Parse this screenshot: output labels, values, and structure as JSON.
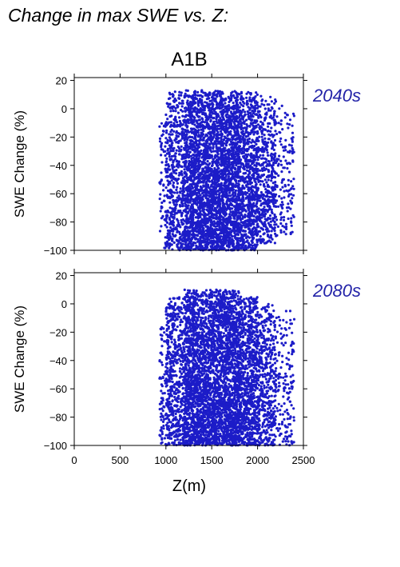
{
  "figure_title": "Change in max SWE vs. Z:",
  "colors": {
    "points": "#1c1cc8",
    "period_label": "#2323a8",
    "axes": "#000000"
  },
  "chart_data": [
    {
      "type": "scatter",
      "title": "A1B",
      "period": "2040s",
      "xlabel": "Z(m)",
      "ylabel": "SWE Change (%)",
      "xlim": [
        0,
        2500
      ],
      "ylim": [
        -100,
        22
      ],
      "xticks": [
        0,
        500,
        1000,
        1500,
        2000,
        2500
      ],
      "yticks": [
        20,
        0,
        -20,
        -40,
        -60,
        -80,
        -100
      ],
      "show_xtick_labels": false,
      "grid": false,
      "series": [
        {
          "point_density_note": "",
          "clusters": [
            {
              "x": [
                930,
                1000
              ],
              "y": [
                -100,
                -5
              ],
              "n": 60
            },
            {
              "x": [
                1000,
                1200
              ],
              "y": [
                -100,
                12
              ],
              "n": 500
            },
            {
              "x": [
                1200,
                1500
              ],
              "y": [
                -100,
                13
              ],
              "n": 1500
            },
            {
              "x": [
                1500,
                1800
              ],
              "y": [
                -100,
                13
              ],
              "n": 1600
            },
            {
              "x": [
                1800,
                2000
              ],
              "y": [
                -100,
                12
              ],
              "n": 800
            },
            {
              "x": [
                2000,
                2200
              ],
              "y": [
                -95,
                10
              ],
              "n": 450
            },
            {
              "x": [
                2200,
                2400
              ],
              "y": [
                -90,
                2
              ],
              "n": 150
            }
          ]
        }
      ]
    },
    {
      "type": "scatter",
      "title": "",
      "period": "2080s",
      "xlabel": "Z(m)",
      "ylabel": "SWE Change (%)",
      "xlim": [
        0,
        2500
      ],
      "ylim": [
        -100,
        22
      ],
      "xticks": [
        0,
        500,
        1000,
        1500,
        2000,
        2500
      ],
      "xtick_labels": [
        "0",
        "500",
        "1000",
        "1500",
        "2000",
        "2500"
      ],
      "yticks": [
        20,
        0,
        -20,
        -40,
        -60,
        -80,
        -100
      ],
      "show_xtick_labels": true,
      "grid": false,
      "series": [
        {
          "clusters": [
            {
              "x": [
                930,
                1000
              ],
              "y": [
                -100,
                -15
              ],
              "n": 70
            },
            {
              "x": [
                1000,
                1200
              ],
              "y": [
                -100,
                5
              ],
              "n": 550
            },
            {
              "x": [
                1200,
                1500
              ],
              "y": [
                -100,
                10
              ],
              "n": 1500
            },
            {
              "x": [
                1500,
                1800
              ],
              "y": [
                -100,
                10
              ],
              "n": 1600
            },
            {
              "x": [
                1800,
                2000
              ],
              "y": [
                -100,
                5
              ],
              "n": 800
            },
            {
              "x": [
                2000,
                2200
              ],
              "y": [
                -100,
                0
              ],
              "n": 450
            },
            {
              "x": [
                2200,
                2400
              ],
              "y": [
                -100,
                -5
              ],
              "n": 160
            }
          ]
        }
      ]
    }
  ]
}
